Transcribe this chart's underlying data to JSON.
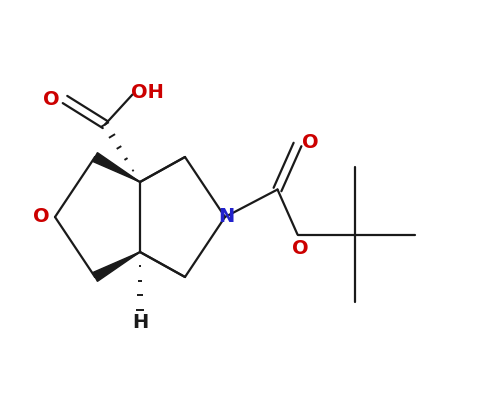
{
  "bg_color": "#ffffff",
  "bond_color": "#1a1a1a",
  "O_color": "#cc0000",
  "N_color": "#2222cc",
  "H_color": "#1a1a1a",
  "figsize": [
    5.0,
    4.17
  ],
  "dpi": 100,
  "xlim": [
    0,
    10
  ],
  "ylim": [
    0,
    8.34
  ],
  "lw": 1.6,
  "fs": 14
}
